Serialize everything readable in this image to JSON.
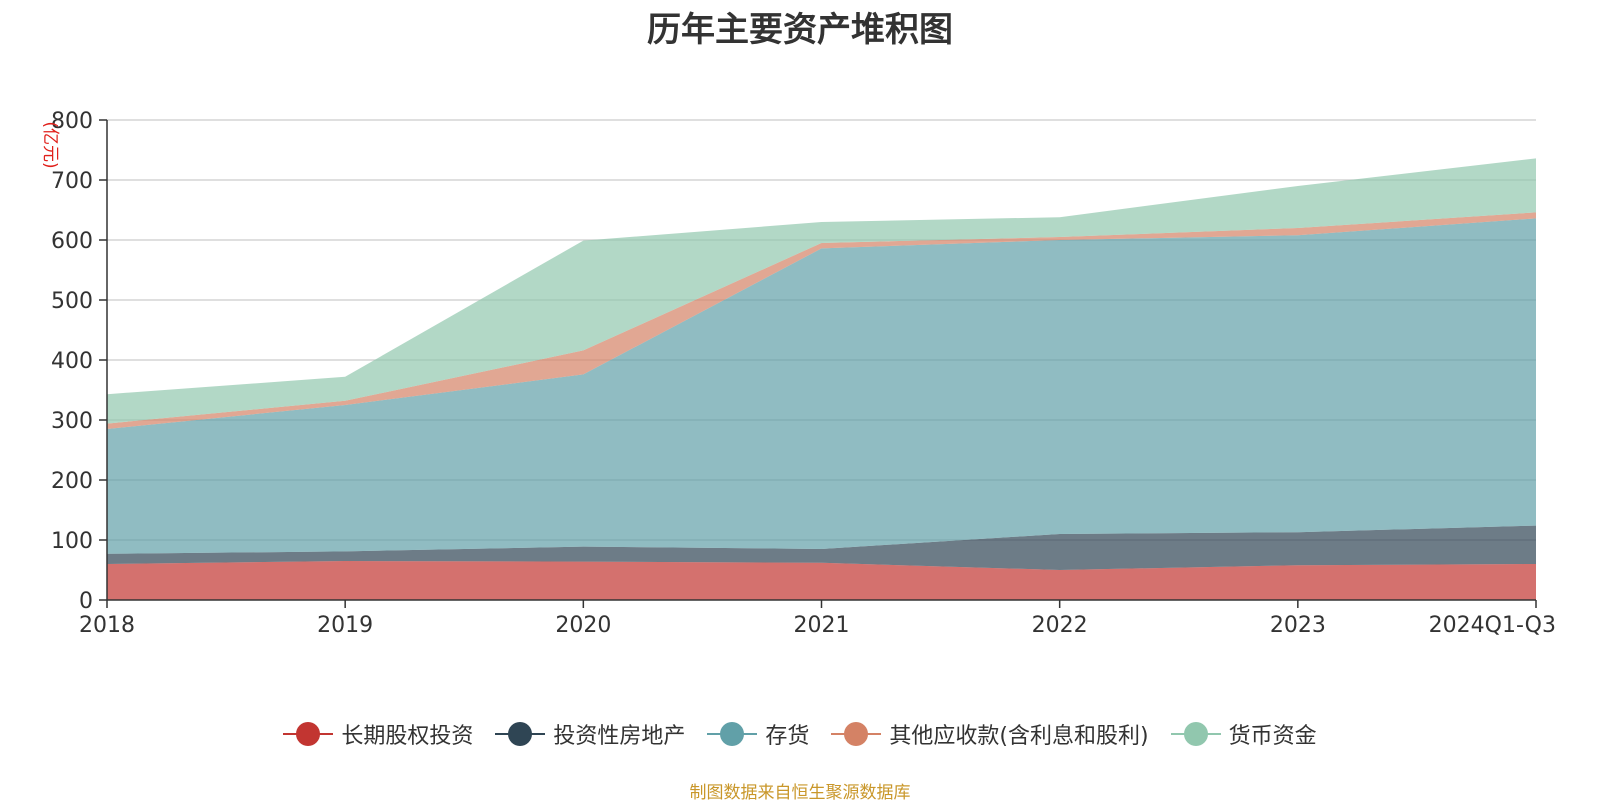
{
  "chart_data": {
    "type": "area",
    "stacked": true,
    "title": "历年主要资产堆积图",
    "unit": "(亿元)",
    "categories": [
      "2018",
      "2019",
      "2020",
      "2021",
      "2022",
      "2023",
      "2024Q1-Q3"
    ],
    "ylim": [
      0,
      800
    ],
    "yticks": [
      0,
      100,
      200,
      300,
      400,
      500,
      600,
      700,
      800
    ],
    "grid": true,
    "legend_position": "bottom-center",
    "series": [
      {
        "name": "长期股权投资",
        "color": "#c23531",
        "values": [
          60,
          65,
          64,
          62,
          50,
          58,
          60
        ]
      },
      {
        "name": "投资性房地产",
        "color": "#2f4554",
        "values": [
          17,
          16,
          25,
          23,
          60,
          55,
          64
        ]
      },
      {
        "name": "存货",
        "color": "#61a0a8",
        "values": [
          208,
          244,
          287,
          501,
          490,
          495,
          512
        ]
      },
      {
        "name": "其他应收款(含利息和股利)",
        "color": "#d48265",
        "values": [
          9,
          7,
          40,
          9,
          5,
          12,
          10
        ]
      },
      {
        "name": "货币资金",
        "color": "#91c7ae",
        "values": [
          49,
          40,
          183,
          35,
          33,
          70,
          90
        ]
      }
    ]
  },
  "source_note": "制图数据来自恒生聚源数据库"
}
